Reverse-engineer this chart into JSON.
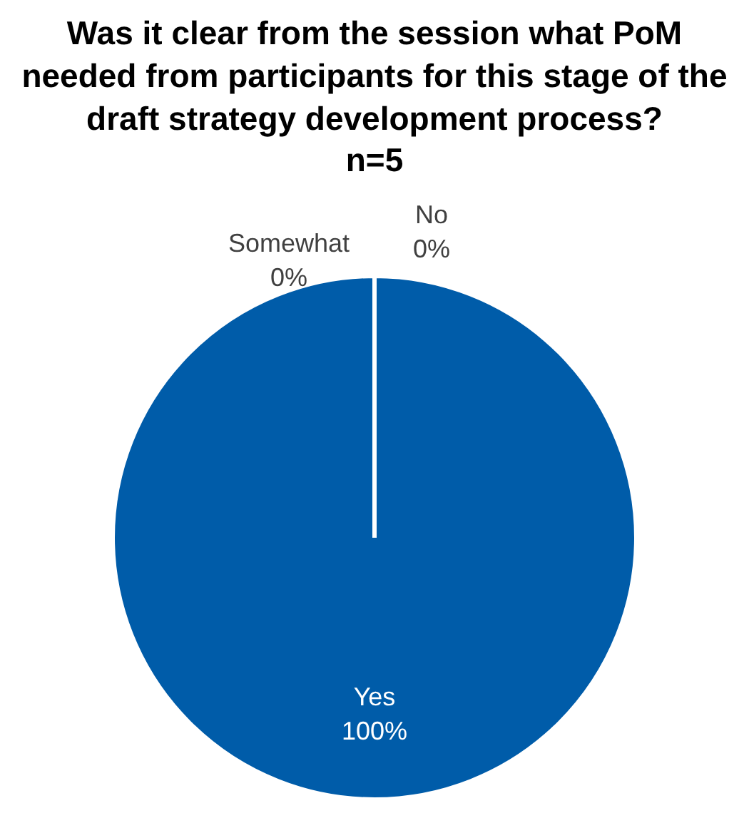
{
  "chart_data": {
    "type": "pie",
    "title": "Was it clear from the session what PoM needed from participants for this stage of the draft strategy development process?",
    "subtitle": "n=5",
    "categories": [
      "Yes",
      "Somewhat",
      "No"
    ],
    "values": [
      100,
      0,
      0
    ],
    "value_labels": [
      "100%",
      "0%",
      "0%"
    ],
    "colors": [
      "#005ca9",
      "#a5a5a5",
      "#ed7d31"
    ],
    "legend": false
  }
}
